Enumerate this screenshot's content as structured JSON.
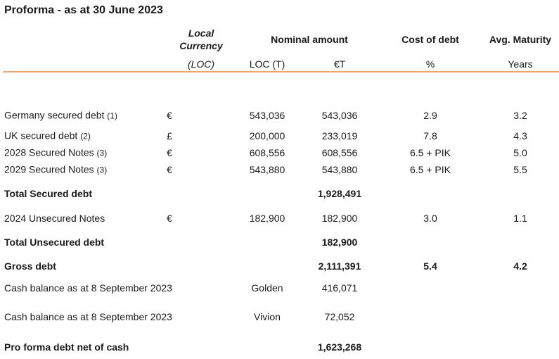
{
  "title": "Proforma - as at 30 June 2023",
  "header": {
    "currency": {
      "title": "Local Currency",
      "unit": "(LOC)"
    },
    "nominal": {
      "title": "Nominal amount",
      "loc_unit": "LOC (T)",
      "eur_unit": "€T"
    },
    "cost": {
      "title": "Cost of debt",
      "unit": "%"
    },
    "maturity": {
      "title": "Avg. Maturity",
      "unit": "Years"
    }
  },
  "rows": [
    {
      "label": "Germany secured debt",
      "note": "(1)",
      "currency": "€",
      "loc": "543,036",
      "eur": "543,036",
      "cost": "2.9",
      "maturity": "3.2"
    },
    {
      "label": "UK secured debt",
      "note": "(2)",
      "currency": "£",
      "loc": "200,000",
      "eur": "233,019",
      "cost": "7.8",
      "maturity": "4.3"
    },
    {
      "label": "2028 Secured Notes",
      "note": "(3)",
      "currency": "€",
      "loc": "608,556",
      "eur": "608,556",
      "cost": "6.5 + PIK",
      "maturity": "5.0"
    },
    {
      "label": "2029 Secured Notes",
      "note": "(3)",
      "currency": "€",
      "loc": "543,880",
      "eur": "543,880",
      "cost": "6.5 + PIK",
      "maturity": "5.5"
    },
    {
      "label": "Total Secured debt",
      "eur": "1,928,491",
      "bold": true
    },
    {
      "label": "2024 Unsecured Notes",
      "currency": "€",
      "loc": "182,900",
      "eur": "182,900",
      "cost": "3.0",
      "maturity": "1.1"
    },
    {
      "label": "Total Unsecured debt",
      "eur": "182,900",
      "bold": true
    },
    {
      "label": "Gross debt",
      "eur": "2,111,391",
      "cost": "5.4",
      "maturity": "4.2",
      "bold": true
    },
    {
      "label": "Cash balance as at 8 September 2023",
      "loc": "Golden",
      "eur": "416,071"
    },
    {
      "label": "Cash balance as at 8 September 2023",
      "loc": "Vivion",
      "eur": "72,052"
    },
    {
      "label": "Pro forma debt net of cash",
      "eur": "1,623,268",
      "bold": true
    }
  ]
}
